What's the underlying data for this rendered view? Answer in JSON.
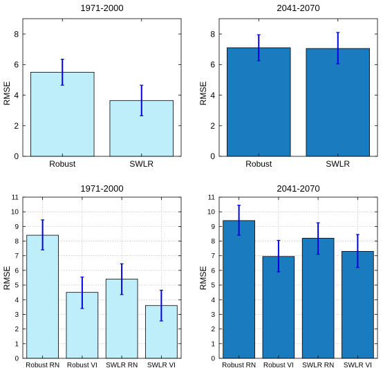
{
  "colors": {
    "light_bar": "#bdeefa",
    "dark_bar": "#1a7bbf",
    "error_bar": "#0000dd",
    "axis": "#000000",
    "grid": "#b0b0b0"
  },
  "chart_data": [
    {
      "type": "bar",
      "title": "1971-2000",
      "ylabel": "RMSE",
      "categories": [
        "Robust",
        "SWLR"
      ],
      "values": [
        5.5,
        3.65
      ],
      "error_low": [
        4.65,
        2.65
      ],
      "error_high": [
        6.35,
        4.65
      ],
      "ylim": [
        0,
        9
      ],
      "yticks": [
        0,
        2,
        4,
        6,
        8
      ],
      "ytick_labels": [
        "0",
        "2",
        "4",
        "6",
        "8"
      ],
      "grid": false,
      "color": "light_bar"
    },
    {
      "type": "bar",
      "title": "2041-2070",
      "ylabel": "RMSE",
      "categories": [
        "Robust",
        "SWLR"
      ],
      "values": [
        7.1,
        7.05
      ],
      "error_low": [
        6.25,
        6.05
      ],
      "error_high": [
        7.95,
        8.1
      ],
      "ylim": [
        0,
        9
      ],
      "yticks": [
        0,
        2,
        4,
        6,
        8
      ],
      "ytick_labels": [
        "0",
        "2",
        "4",
        "6",
        "8"
      ],
      "grid": false,
      "color": "dark_bar"
    },
    {
      "type": "bar",
      "title": "1971-2000",
      "ylabel": "RMSE",
      "categories": [
        "Robust RN",
        "Robust VI",
        "SWLR RN",
        "SWLR VI"
      ],
      "values": [
        8.4,
        4.5,
        5.4,
        3.6
      ],
      "error_low": [
        7.4,
        3.4,
        4.35,
        2.55
      ],
      "error_high": [
        9.45,
        5.55,
        6.45,
        4.65
      ],
      "ylim": [
        0,
        11
      ],
      "yticks": [
        0,
        1,
        2,
        3,
        4,
        5,
        6,
        7,
        8,
        9,
        10,
        11
      ],
      "ytick_labels": [
        "0",
        "1",
        "2",
        "3",
        "4",
        "5",
        "6",
        "7",
        "8",
        "9",
        "10",
        "11"
      ],
      "grid": true,
      "color": "light_bar"
    },
    {
      "type": "bar",
      "title": "2041-2070",
      "ylabel": "RMSE",
      "categories": [
        "Robust RN",
        "Robust VI",
        "SWLR RN",
        "SWLR VI"
      ],
      "values": [
        9.4,
        6.95,
        8.2,
        7.3
      ],
      "error_low": [
        8.4,
        5.9,
        7.1,
        6.2
      ],
      "error_high": [
        10.45,
        8.05,
        9.25,
        8.45
      ],
      "ylim": [
        0,
        11
      ],
      "yticks": [
        0,
        1,
        2,
        3,
        4,
        5,
        6,
        7,
        8,
        9,
        10,
        11
      ],
      "ytick_labels": [
        "0",
        "1",
        "2",
        "3",
        "4",
        "5",
        "6",
        "7",
        "8",
        "9",
        "10",
        "11"
      ],
      "grid": true,
      "color": "dark_bar"
    }
  ]
}
